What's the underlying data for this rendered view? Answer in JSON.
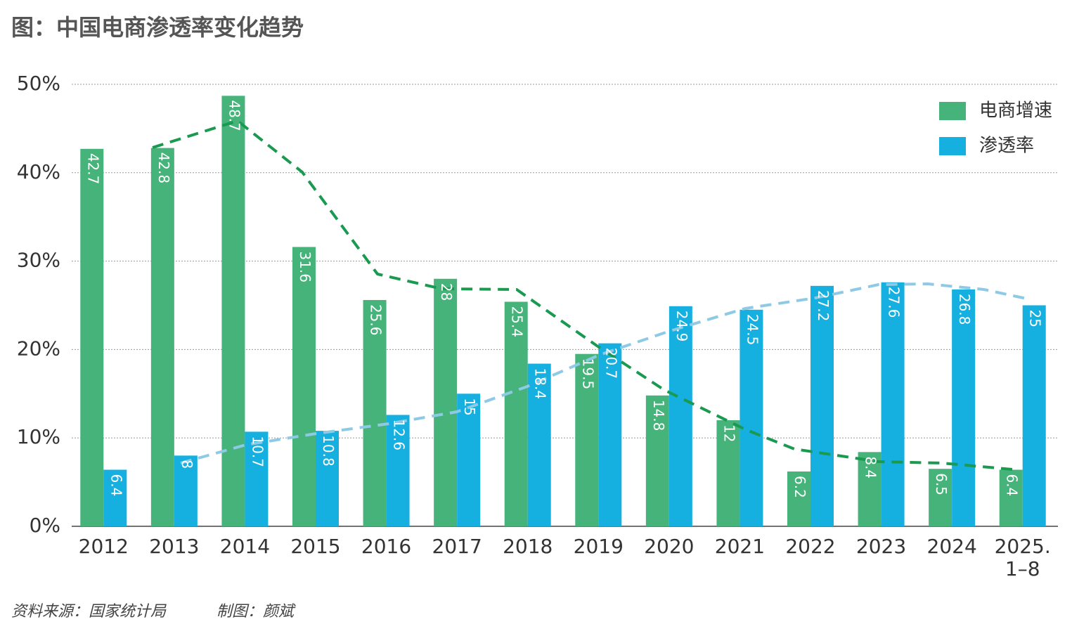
{
  "chart_data": {
    "type": "bar",
    "title": "图：中国电商渗透率变化趋势",
    "categories": [
      "2012",
      "2013",
      "2014",
      "2015",
      "2016",
      "2017",
      "2018",
      "2019",
      "2020",
      "2021",
      "2022",
      "2023",
      "2024",
      "2025.\n1–8"
    ],
    "series": [
      {
        "name": "电商增速",
        "color": "#45b37a",
        "values": [
          42.7,
          42.8,
          48.7,
          31.6,
          25.6,
          28,
          25.4,
          19.5,
          14.8,
          12,
          6.2,
          8.4,
          6.5,
          6.4
        ]
      },
      {
        "name": "渗透率",
        "color": "#15afe0",
        "values": [
          6.4,
          8,
          10.7,
          10.8,
          12.6,
          15,
          18.4,
          20.7,
          24.9,
          24.5,
          27.2,
          27.6,
          26.8,
          25
        ]
      }
    ],
    "ylim": [
      0,
      50
    ],
    "yticks": [
      {
        "value": 0,
        "label": "0%"
      },
      {
        "value": 10,
        "label": "10%"
      },
      {
        "value": 20,
        "label": "20%"
      },
      {
        "value": 30,
        "label": "30%"
      },
      {
        "value": 40,
        "label": "40%"
      },
      {
        "value": 50,
        "label": "50%"
      }
    ],
    "grid": true,
    "legend": "upper right",
    "source": "资料来源：国家统计局",
    "credit": "制图：颜斌"
  }
}
